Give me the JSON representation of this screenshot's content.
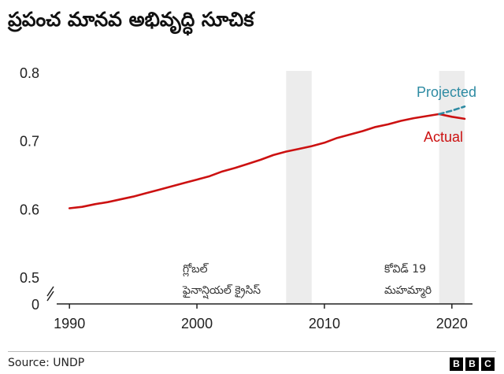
{
  "title": "ప్రపంచ మానవ అభివృద్ధి సూచిక",
  "chart_data": {
    "type": "line",
    "title": "ప్రపంచ మానవ అభివృద్ధి సూచిక",
    "xlabel": "",
    "ylabel": "",
    "xlim": [
      1989,
      2021
    ],
    "ylim": [
      0.5,
      0.8
    ],
    "y_axis_break": true,
    "y_ticks": [
      "0.8",
      "0.7",
      "0.6",
      "0.5",
      "0"
    ],
    "y_tick_values": [
      0.8,
      0.7,
      0.6,
      0.5
    ],
    "x_ticks": [
      "1990",
      "2000",
      "2010",
      "2020"
    ],
    "x_tick_values": [
      1990,
      2000,
      2010,
      2020
    ],
    "series": [
      {
        "name": "Actual",
        "color": "#cc1111",
        "style": "solid",
        "x": [
          1990,
          1991,
          1992,
          1993,
          1994,
          1995,
          1996,
          1997,
          1998,
          1999,
          2000,
          2001,
          2002,
          2003,
          2004,
          2005,
          2006,
          2007,
          2008,
          2009,
          2010,
          2011,
          2012,
          2013,
          2014,
          2015,
          2016,
          2017,
          2018,
          2019,
          2020,
          2021
        ],
        "values": [
          0.601,
          0.603,
          0.607,
          0.61,
          0.614,
          0.618,
          0.623,
          0.628,
          0.633,
          0.638,
          0.643,
          0.648,
          0.655,
          0.66,
          0.666,
          0.672,
          0.679,
          0.684,
          0.688,
          0.692,
          0.697,
          0.704,
          0.709,
          0.714,
          0.72,
          0.724,
          0.729,
          0.733,
          0.736,
          0.739,
          0.735,
          0.732
        ]
      },
      {
        "name": "Projected",
        "color": "#2e8ba3",
        "style": "dashed",
        "x": [
          2019,
          2020,
          2021
        ],
        "values": [
          0.739,
          0.744,
          0.75
        ]
      }
    ],
    "shaded_periods": [
      {
        "start": 2007,
        "end": 2009,
        "label_lines": [
          "గ్లోబల్",
          "ఫైనాన్షియల్ క్రైసిస్"
        ]
      },
      {
        "start": 2019,
        "end": 2021,
        "label_lines": [
          "కోవిడ్ 19",
          "మహమ్మారి"
        ]
      }
    ],
    "legend": "inline at line ends"
  },
  "colors": {
    "shade": "#ececec",
    "axis": "#222222",
    "actual": "#cc1111",
    "projected": "#2e8ba3"
  },
  "footer": {
    "source": "Source: UNDP",
    "logo": [
      "B",
      "B",
      "C"
    ]
  }
}
